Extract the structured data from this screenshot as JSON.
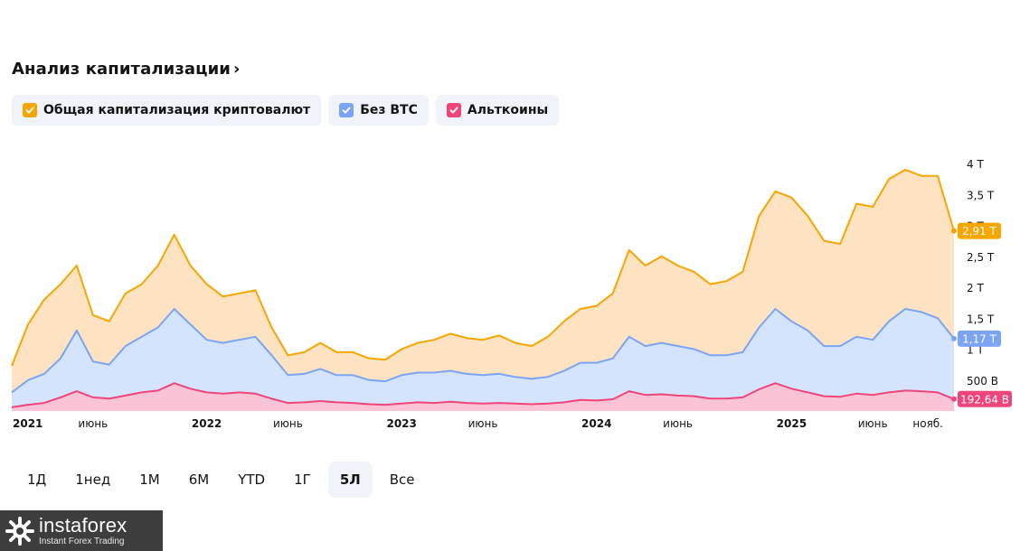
{
  "header": {
    "title": "Анализ капитализации"
  },
  "legend": [
    {
      "label": "Общая капитализация криптовалют",
      "color": "#f7a600",
      "checked": true
    },
    {
      "label": "Без BTC",
      "color": "#7ba4f5",
      "checked": true
    },
    {
      "label": "Альткоины",
      "color": "#f0457a",
      "checked": true
    }
  ],
  "ranges": [
    {
      "label": "1Д",
      "active": false
    },
    {
      "label": "1нед",
      "active": false
    },
    {
      "label": "1М",
      "active": false
    },
    {
      "label": "6М",
      "active": false
    },
    {
      "label": "YTD",
      "active": false
    },
    {
      "label": "1Г",
      "active": false
    },
    {
      "label": "5Л",
      "active": true
    },
    {
      "label": "Все",
      "active": false
    }
  ],
  "watermark": {
    "name": "instaforex",
    "tagline": "Instant Forex Trading"
  },
  "chart_data": {
    "type": "area",
    "x_start": "2021-01",
    "x_end": "2025-11",
    "x_ticks": [
      {
        "t": "2021-01",
        "label": "2021",
        "bold": true
      },
      {
        "t": "2021-06",
        "label": "июнь",
        "bold": false
      },
      {
        "t": "2022-01",
        "label": "2022",
        "bold": true
      },
      {
        "t": "2022-06",
        "label": "июнь",
        "bold": false
      },
      {
        "t": "2023-01",
        "label": "2023",
        "bold": true
      },
      {
        "t": "2023-06",
        "label": "июнь",
        "bold": false
      },
      {
        "t": "2024-01",
        "label": "2024",
        "bold": true
      },
      {
        "t": "2024-06",
        "label": "июнь",
        "bold": false
      },
      {
        "t": "2025-01",
        "label": "2025",
        "bold": true
      },
      {
        "t": "2025-06",
        "label": "июнь",
        "bold": false
      },
      {
        "t": "2025-11",
        "label": "нояб.",
        "bold": false
      }
    ],
    "y_ticks": [
      {
        "value": 0.5,
        "label": "500 B"
      },
      {
        "value": 1,
        "label": "1 T"
      },
      {
        "value": 1.5,
        "label": "1,5 T"
      },
      {
        "value": 2,
        "label": "2 T"
      },
      {
        "value": 2.5,
        "label": "2,5 T"
      },
      {
        "value": 3,
        "label": "3 T"
      },
      {
        "value": 3.5,
        "label": "3,5 T"
      },
      {
        "value": 4,
        "label": "4 T"
      }
    ],
    "y_unit": "trillion USD",
    "series": [
      {
        "name": "Общая капитализация криптовалют",
        "color": "#f7a600",
        "fill": "#fde3c2",
        "last_label": "2,91 T",
        "points": [
          [
            "2021-01",
            0.73
          ],
          [
            "2021-02",
            1.4
          ],
          [
            "2021-03",
            1.8
          ],
          [
            "2021-04",
            2.05
          ],
          [
            "2021-05",
            2.35
          ],
          [
            "2021-06",
            1.55
          ],
          [
            "2021-07",
            1.45
          ],
          [
            "2021-08",
            1.9
          ],
          [
            "2021-09",
            2.05
          ],
          [
            "2021-10",
            2.35
          ],
          [
            "2021-11",
            2.85
          ],
          [
            "2021-12",
            2.35
          ],
          [
            "2022-01",
            2.05
          ],
          [
            "2022-02",
            1.85
          ],
          [
            "2022-03",
            1.9
          ],
          [
            "2022-04",
            1.95
          ],
          [
            "2022-05",
            1.35
          ],
          [
            "2022-06",
            0.9
          ],
          [
            "2022-07",
            0.95
          ],
          [
            "2022-08",
            1.1
          ],
          [
            "2022-09",
            0.95
          ],
          [
            "2022-10",
            0.95
          ],
          [
            "2022-11",
            0.85
          ],
          [
            "2022-12",
            0.83
          ],
          [
            "2023-01",
            1.0
          ],
          [
            "2023-02",
            1.1
          ],
          [
            "2023-03",
            1.15
          ],
          [
            "2023-04",
            1.25
          ],
          [
            "2023-05",
            1.18
          ],
          [
            "2023-06",
            1.15
          ],
          [
            "2023-07",
            1.22
          ],
          [
            "2023-08",
            1.1
          ],
          [
            "2023-09",
            1.05
          ],
          [
            "2023-10",
            1.2
          ],
          [
            "2023-11",
            1.45
          ],
          [
            "2023-12",
            1.65
          ],
          [
            "2024-01",
            1.7
          ],
          [
            "2024-02",
            1.9
          ],
          [
            "2024-03",
            2.6
          ],
          [
            "2024-04",
            2.35
          ],
          [
            "2024-05",
            2.5
          ],
          [
            "2024-06",
            2.35
          ],
          [
            "2024-07",
            2.25
          ],
          [
            "2024-08",
            2.05
          ],
          [
            "2024-09",
            2.1
          ],
          [
            "2024-10",
            2.25
          ],
          [
            "2024-11",
            3.15
          ],
          [
            "2024-12",
            3.55
          ],
          [
            "2025-01",
            3.45
          ],
          [
            "2025-02",
            3.15
          ],
          [
            "2025-03",
            2.75
          ],
          [
            "2025-04",
            2.7
          ],
          [
            "2025-05",
            3.35
          ],
          [
            "2025-06",
            3.3
          ],
          [
            "2025-07",
            3.75
          ],
          [
            "2025-08",
            3.9
          ],
          [
            "2025-09",
            3.8
          ],
          [
            "2025-10",
            3.8
          ],
          [
            "2025-11",
            2.91
          ]
        ]
      },
      {
        "name": "Без BTC",
        "color": "#7ba4f5",
        "fill": "#d4e4fc",
        "last_label": "1,17 T",
        "points": [
          [
            "2021-01",
            0.3
          ],
          [
            "2021-02",
            0.5
          ],
          [
            "2021-03",
            0.6
          ],
          [
            "2021-04",
            0.85
          ],
          [
            "2021-05",
            1.3
          ],
          [
            "2021-06",
            0.8
          ],
          [
            "2021-07",
            0.75
          ],
          [
            "2021-08",
            1.05
          ],
          [
            "2021-09",
            1.2
          ],
          [
            "2021-10",
            1.35
          ],
          [
            "2021-11",
            1.65
          ],
          [
            "2021-12",
            1.4
          ],
          [
            "2022-01",
            1.15
          ],
          [
            "2022-02",
            1.1
          ],
          [
            "2022-03",
            1.15
          ],
          [
            "2022-04",
            1.2
          ],
          [
            "2022-05",
            0.9
          ],
          [
            "2022-06",
            0.58
          ],
          [
            "2022-07",
            0.6
          ],
          [
            "2022-08",
            0.68
          ],
          [
            "2022-09",
            0.58
          ],
          [
            "2022-10",
            0.58
          ],
          [
            "2022-11",
            0.5
          ],
          [
            "2022-12",
            0.48
          ],
          [
            "2023-01",
            0.58
          ],
          [
            "2023-02",
            0.62
          ],
          [
            "2023-03",
            0.62
          ],
          [
            "2023-04",
            0.65
          ],
          [
            "2023-05",
            0.6
          ],
          [
            "2023-06",
            0.58
          ],
          [
            "2023-07",
            0.6
          ],
          [
            "2023-08",
            0.55
          ],
          [
            "2023-09",
            0.52
          ],
          [
            "2023-10",
            0.55
          ],
          [
            "2023-11",
            0.65
          ],
          [
            "2023-12",
            0.78
          ],
          [
            "2024-01",
            0.78
          ],
          [
            "2024-02",
            0.85
          ],
          [
            "2024-03",
            1.2
          ],
          [
            "2024-04",
            1.05
          ],
          [
            "2024-05",
            1.1
          ],
          [
            "2024-06",
            1.05
          ],
          [
            "2024-07",
            1.0
          ],
          [
            "2024-08",
            0.9
          ],
          [
            "2024-09",
            0.9
          ],
          [
            "2024-10",
            0.95
          ],
          [
            "2024-11",
            1.35
          ],
          [
            "2024-12",
            1.65
          ],
          [
            "2025-01",
            1.45
          ],
          [
            "2025-02",
            1.3
          ],
          [
            "2025-03",
            1.05
          ],
          [
            "2025-04",
            1.05
          ],
          [
            "2025-05",
            1.2
          ],
          [
            "2025-06",
            1.15
          ],
          [
            "2025-07",
            1.45
          ],
          [
            "2025-08",
            1.65
          ],
          [
            "2025-09",
            1.6
          ],
          [
            "2025-10",
            1.5
          ],
          [
            "2025-11",
            1.17
          ]
        ]
      },
      {
        "name": "Альткоины",
        "color": "#f0457a",
        "fill": "#fbc4d6",
        "last_label": "192,64 B",
        "points": [
          [
            "2021-01",
            0.06
          ],
          [
            "2021-02",
            0.1
          ],
          [
            "2021-03",
            0.13
          ],
          [
            "2021-04",
            0.22
          ],
          [
            "2021-05",
            0.32
          ],
          [
            "2021-06",
            0.22
          ],
          [
            "2021-07",
            0.2
          ],
          [
            "2021-08",
            0.25
          ],
          [
            "2021-09",
            0.3
          ],
          [
            "2021-10",
            0.33
          ],
          [
            "2021-11",
            0.45
          ],
          [
            "2021-12",
            0.36
          ],
          [
            "2022-01",
            0.3
          ],
          [
            "2022-02",
            0.28
          ],
          [
            "2022-03",
            0.3
          ],
          [
            "2022-04",
            0.28
          ],
          [
            "2022-05",
            0.2
          ],
          [
            "2022-06",
            0.13
          ],
          [
            "2022-07",
            0.14
          ],
          [
            "2022-08",
            0.16
          ],
          [
            "2022-09",
            0.14
          ],
          [
            "2022-10",
            0.13
          ],
          [
            "2022-11",
            0.11
          ],
          [
            "2022-12",
            0.1
          ],
          [
            "2023-01",
            0.12
          ],
          [
            "2023-02",
            0.14
          ],
          [
            "2023-03",
            0.13
          ],
          [
            "2023-04",
            0.15
          ],
          [
            "2023-05",
            0.13
          ],
          [
            "2023-06",
            0.12
          ],
          [
            "2023-07",
            0.13
          ],
          [
            "2023-08",
            0.12
          ],
          [
            "2023-09",
            0.11
          ],
          [
            "2023-10",
            0.12
          ],
          [
            "2023-11",
            0.14
          ],
          [
            "2023-12",
            0.18
          ],
          [
            "2024-01",
            0.17
          ],
          [
            "2024-02",
            0.19
          ],
          [
            "2024-03",
            0.32
          ],
          [
            "2024-04",
            0.26
          ],
          [
            "2024-05",
            0.27
          ],
          [
            "2024-06",
            0.25
          ],
          [
            "2024-07",
            0.24
          ],
          [
            "2024-08",
            0.2
          ],
          [
            "2024-09",
            0.2
          ],
          [
            "2024-10",
            0.22
          ],
          [
            "2024-11",
            0.35
          ],
          [
            "2024-12",
            0.45
          ],
          [
            "2025-01",
            0.36
          ],
          [
            "2025-02",
            0.3
          ],
          [
            "2025-03",
            0.24
          ],
          [
            "2025-04",
            0.23
          ],
          [
            "2025-05",
            0.28
          ],
          [
            "2025-06",
            0.26
          ],
          [
            "2025-07",
            0.3
          ],
          [
            "2025-08",
            0.33
          ],
          [
            "2025-09",
            0.32
          ],
          [
            "2025-10",
            0.3
          ],
          [
            "2025-11",
            0.19264
          ]
        ]
      }
    ]
  }
}
